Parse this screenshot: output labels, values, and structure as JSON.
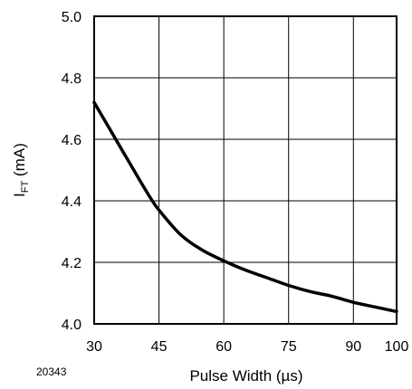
{
  "figure_id": "20343",
  "chart_data": {
    "type": "line",
    "title": "",
    "xlabel": "Pulse Width (µs)",
    "ylabel_main": "I",
    "ylabel_sub": "FT",
    "ylabel_unit": " (mA)",
    "xlim": [
      30,
      100
    ],
    "ylim": [
      4.0,
      5.0
    ],
    "x_ticks": [
      "30",
      "45",
      "60",
      "75",
      "90",
      "100"
    ],
    "y_ticks": [
      "4.0",
      "4.2",
      "4.4",
      "4.6",
      "4.8",
      "5.0"
    ],
    "grid": true,
    "series": [
      {
        "x": [
          30,
          35,
          40,
          43,
          45,
          50,
          55,
          60,
          65,
          70,
          75,
          80,
          85,
          90,
          95,
          100
        ],
        "y": [
          4.72,
          4.6,
          4.48,
          4.41,
          4.37,
          4.29,
          4.24,
          4.205,
          4.175,
          4.15,
          4.125,
          4.105,
          4.09,
          4.07,
          4.055,
          4.04
        ]
      }
    ],
    "line_color": "#000000"
  }
}
